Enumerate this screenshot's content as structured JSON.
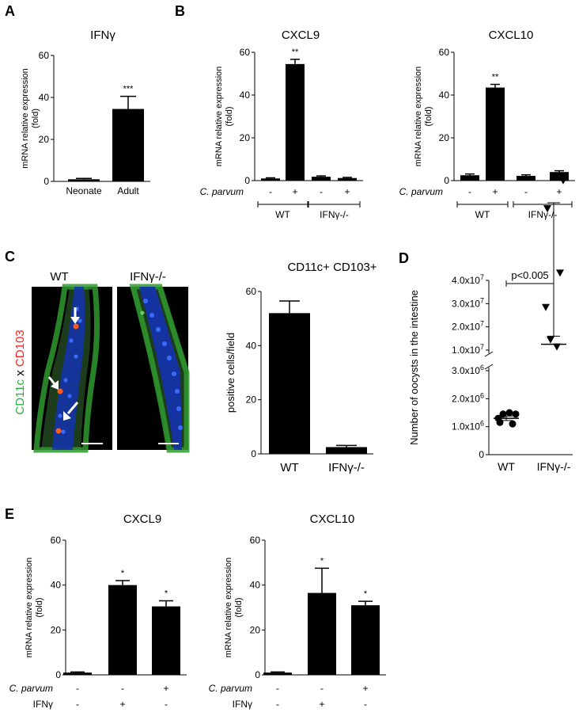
{
  "panels": {
    "A": "A",
    "B": "B",
    "C": "C",
    "D": "D",
    "E": "E"
  },
  "common": {
    "ylabel_line1": "mRNA relative expression",
    "ylabel_line2": "(fold)",
    "cparvum_label": "C. parvum",
    "ifng_label": "IFNγ",
    "wt": "WT",
    "ko": "IFNγ-/-",
    "minus": "-",
    "plus": "+"
  },
  "micro": {
    "wt_label": "WT",
    "ko_label": "IFNγ-/-",
    "cd11c": "CD11c",
    "x": "x",
    "cd103": "CD103",
    "colors": {
      "green": "#27b03a",
      "red": "#ff2020",
      "blue": "#1a3fd6"
    }
  },
  "chart_data": [
    {
      "id": "A",
      "type": "bar",
      "title": "IFNγ",
      "categories": [
        "Neonate",
        "Adult"
      ],
      "values": [
        1,
        34.5
      ],
      "errors": [
        0.4,
        6
      ],
      "significance": [
        "",
        "***"
      ],
      "ylim": [
        0,
        60
      ],
      "yticks": [
        0,
        20,
        40,
        60
      ],
      "ylabel": "mRNA relative expression (fold)"
    },
    {
      "id": "B1",
      "type": "bar",
      "title": "CXCL9",
      "categories": [
        "WT -",
        "WT +",
        "IFNγ-/- -",
        "IFNγ-/- +"
      ],
      "cparvum": [
        "-",
        "+",
        "-",
        "+"
      ],
      "groups": [
        "WT",
        "IFNγ-/-"
      ],
      "values": [
        1,
        54.5,
        1.8,
        1.2
      ],
      "errors": [
        0.3,
        2.2,
        0.4,
        0.3
      ],
      "significance": [
        "",
        "**",
        "",
        ""
      ],
      "ylim": [
        0,
        60
      ],
      "yticks": [
        0,
        20,
        40,
        60
      ],
      "ylabel": "mRNA relative expression (fold)"
    },
    {
      "id": "B2",
      "type": "bar",
      "title": "CXCL10",
      "categories": [
        "WT -",
        "WT +",
        "IFNγ-/- -",
        "IFNγ-/- +"
      ],
      "cparvum": [
        "-",
        "+",
        "-",
        "+"
      ],
      "groups": [
        "WT",
        "IFNγ-/-"
      ],
      "values": [
        2.5,
        43.5,
        2.2,
        4
      ],
      "errors": [
        0.6,
        1.5,
        0.5,
        0.6
      ],
      "significance": [
        "",
        "**",
        "",
        ""
      ],
      "ylim": [
        0,
        60
      ],
      "yticks": [
        0,
        20,
        40,
        60
      ],
      "ylabel": "mRNA relative expression (fold)"
    },
    {
      "id": "C",
      "type": "bar",
      "title": "CD11c+ CD103+",
      "categories": [
        "WT",
        "IFNγ-/-"
      ],
      "values": [
        52,
        2.5
      ],
      "errors": [
        4.5,
        0.6
      ],
      "ylim": [
        0,
        60
      ],
      "yticks": [
        0,
        20,
        40,
        60
      ],
      "ylabel": "positive cells/field"
    },
    {
      "id": "D",
      "type": "scatter",
      "ylabel": "Number of oocysts in the intestine",
      "categories": [
        "WT",
        "IFNγ-/-"
      ],
      "yticks_lower": [
        "0",
        "1.0x10^6",
        "2.0x10^6",
        "3.0x10^6"
      ],
      "yticks_upper": [
        "1.0x10^7",
        "2.0x10^7",
        "3.0x10^7",
        "4.0x10^7"
      ],
      "annotation": "p<0.005",
      "series": [
        {
          "name": "WT",
          "marker": "circle",
          "values": [
            1300000,
            1450000,
            1500000,
            1450000,
            1150000,
            1100000
          ],
          "mean": 1300000,
          "sem": 80000
        },
        {
          "name": "IFNγ-/-",
          "marker": "triangle-down",
          "values": [
            28500000,
            14500000,
            11500000,
            9800000,
            8800000,
            6500000
          ],
          "mean": 12500000,
          "sem": 3500000
        }
      ]
    },
    {
      "id": "E1",
      "type": "bar",
      "title": "CXCL9",
      "cparvum": [
        "-",
        "-",
        "+"
      ],
      "ifng": [
        "-",
        "+",
        "-"
      ],
      "values": [
        1,
        40,
        30.5
      ],
      "errors": [
        0.3,
        2,
        2.5
      ],
      "significance": [
        "",
        "*",
        "*"
      ],
      "ylim": [
        0,
        60
      ],
      "yticks": [
        0,
        20,
        40,
        60
      ],
      "ylabel": "mRNA relative expression (fold)"
    },
    {
      "id": "E2",
      "type": "bar",
      "title": "CXCL10",
      "cparvum": [
        "-",
        "-",
        "+"
      ],
      "ifng": [
        "-",
        "+",
        "-"
      ],
      "values": [
        1,
        36.5,
        31
      ],
      "errors": [
        0.3,
        11,
        1.8
      ],
      "significance": [
        "",
        "*",
        "*"
      ],
      "ylim": [
        0,
        60
      ],
      "yticks": [
        0,
        20,
        40,
        60
      ],
      "ylabel": "mRNA relative expression (fold)"
    }
  ]
}
